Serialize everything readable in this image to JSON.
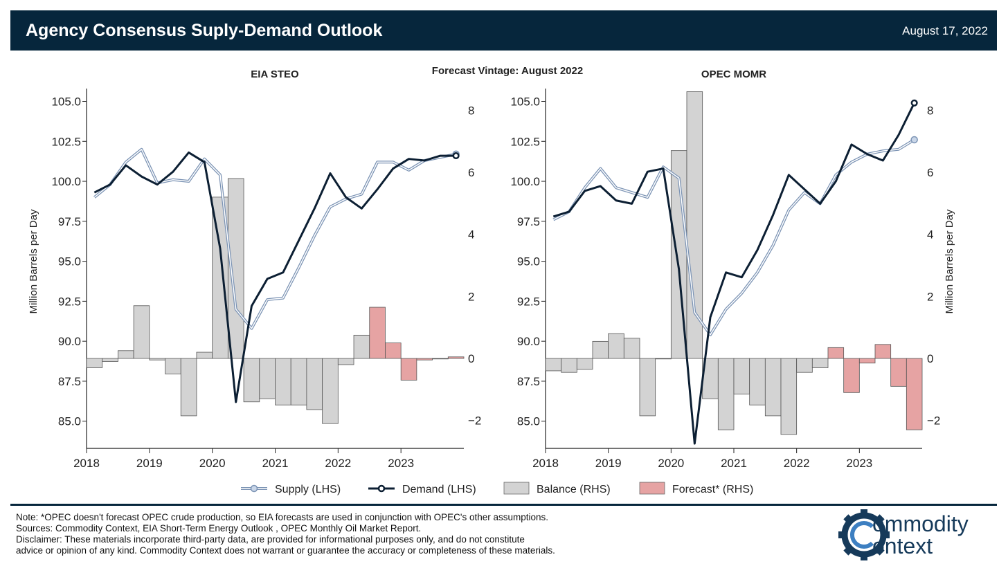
{
  "header": {
    "title": "Agency Consensus Suply-Demand Outlook",
    "date": "August 17, 2022"
  },
  "subtitle": "Forecast Vintage: August 2022",
  "legend": {
    "supply": "Supply (LHS)",
    "demand": "Demand (LHS)",
    "balance": "Balance (RHS)",
    "forecast": "Forecast* (RHS)"
  },
  "colors": {
    "header_bg": "#06263c",
    "supply": "#7b93b4",
    "demand": "#0c1f33",
    "balance": "#d3d3d3",
    "forecast": "#e6a3a3"
  },
  "notes": {
    "note": "Note: *OPEC doesn't forecast OPEC crude production, so EIA forecasts are used in conjunction with OPEC's other assumptions.",
    "sources": "Sources: Commodity Context, EIA Short-Term Energy Outlook , OPEC Monthly Oil Market Report.",
    "disclaimer_1": "Disclaimer: These materials incorporate third-party data, are provided for informational purposes only, and do not constitute",
    "disclaimer_2": "advice or opinion of any kind. Commodity Context does not warrant or guarantee the accuracy or completeness of these materials."
  },
  "logo": {
    "line1": "ommodity",
    "line2": "ontext"
  },
  "chart_data": [
    {
      "type": "bar",
      "title": "EIA STEO",
      "ylabel": "Million Barrels per Day",
      "y_axis_side": "left",
      "ylim_left": [
        83.3,
        105.8
      ],
      "ylim_right": [
        -2.9,
        8.7
      ],
      "left_ticks": [
        "105.0",
        "102.5",
        "100.0",
        "97.5",
        "95.0",
        "92.5",
        "90.0",
        "87.5",
        "85.0"
      ],
      "right_ticks": [
        "8",
        "6",
        "4",
        "2",
        "0",
        "−2"
      ],
      "x_ticks": [
        "2018",
        "2019",
        "2020",
        "2021",
        "2022",
        "2023"
      ],
      "categories": [
        "2018Q1",
        "2018Q2",
        "2018Q3",
        "2018Q4",
        "2019Q1",
        "2019Q2",
        "2019Q3",
        "2019Q4",
        "2020Q1",
        "2020Q2",
        "2020Q3",
        "2020Q4",
        "2021Q1",
        "2021Q2",
        "2021Q3",
        "2021Q4",
        "2022Q1",
        "2022Q2",
        "2022Q3",
        "2022Q4",
        "2023Q1",
        "2023Q2",
        "2023Q3",
        "2023Q4"
      ],
      "series": [
        {
          "name": "Supply (LHS)",
          "values": [
            99.0,
            99.8,
            101.2,
            102.0,
            99.9,
            100.1,
            100.0,
            101.4,
            100.4,
            92.0,
            90.8,
            92.6,
            92.7,
            94.6,
            96.6,
            98.4,
            98.9,
            99.2,
            101.2,
            101.2,
            100.7,
            101.3,
            101.5,
            101.7
          ]
        },
        {
          "name": "Demand (LHS)",
          "values": [
            99.3,
            99.8,
            101.0,
            100.3,
            99.8,
            100.6,
            101.8,
            101.2,
            95.8,
            86.2,
            92.2,
            93.9,
            94.3,
            96.3,
            98.3,
            100.5,
            99.0,
            98.3,
            99.5,
            100.8,
            101.4,
            101.3,
            101.6,
            101.6
          ]
        },
        {
          "name": "Balance (RHS)",
          "values": [
            -0.3,
            -0.1,
            0.25,
            1.7,
            -0.05,
            -0.5,
            -1.85,
            0.2,
            5.2,
            5.8,
            -1.4,
            -1.3,
            -1.5,
            -1.5,
            -1.65,
            -2.1,
            -0.2,
            0.75,
            1.65,
            0.5,
            -0.7,
            -0.05,
            0.0,
            0.05
          ]
        }
      ],
      "forecast_from_index": 18
    },
    {
      "type": "bar",
      "title": "OPEC MOMR",
      "ylabel": "Million Barrels per Day",
      "y_axis_side": "right",
      "ylim_left": [
        83.3,
        105.8
      ],
      "ylim_right": [
        -2.9,
        8.7
      ],
      "left_ticks": [
        "105.0",
        "102.5",
        "100.0",
        "97.5",
        "95.0",
        "92.5",
        "90.0",
        "87.5",
        "85.0"
      ],
      "right_ticks": [
        "8",
        "6",
        "4",
        "2",
        "0",
        "−2"
      ],
      "x_ticks": [
        "2018",
        "2019",
        "2020",
        "2021",
        "2022",
        "2023"
      ],
      "categories": [
        "2018Q1",
        "2018Q2",
        "2018Q3",
        "2018Q4",
        "2019Q1",
        "2019Q2",
        "2019Q3",
        "2019Q4",
        "2020Q1",
        "2020Q2",
        "2020Q3",
        "2020Q4",
        "2021Q1",
        "2021Q2",
        "2021Q3",
        "2021Q4",
        "2022Q1",
        "2022Q2",
        "2022Q3",
        "2022Q4",
        "2023Q1",
        "2023Q2",
        "2023Q3",
        "2023Q4"
      ],
      "series": [
        {
          "name": "Supply (LHS)",
          "values": [
            97.6,
            98.1,
            99.6,
            100.8,
            99.6,
            99.3,
            99.0,
            100.9,
            100.2,
            91.8,
            90.4,
            92.0,
            93.0,
            94.3,
            96.0,
            98.2,
            99.3,
            98.6,
            100.4,
            101.2,
            101.7,
            101.9,
            102.0,
            102.6
          ]
        },
        {
          "name": "Demand (LHS)",
          "values": [
            97.8,
            98.1,
            99.4,
            99.7,
            98.8,
            98.6,
            100.6,
            100.8,
            94.5,
            83.6,
            91.5,
            94.3,
            94.0,
            95.7,
            97.9,
            100.4,
            99.5,
            98.6,
            100.0,
            102.3,
            101.7,
            101.3,
            102.9,
            104.9
          ]
        },
        {
          "name": "Balance (RHS)",
          "values": [
            -0.4,
            -0.45,
            -0.35,
            0.55,
            0.8,
            0.65,
            -1.85,
            0.0,
            6.7,
            8.6,
            -1.3,
            -2.3,
            -1.15,
            -1.5,
            -1.85,
            -2.45,
            -0.45,
            -0.3,
            0.35,
            -1.1,
            -0.15,
            0.45,
            -0.9,
            -2.3
          ]
        }
      ],
      "forecast_from_index": 18
    }
  ]
}
